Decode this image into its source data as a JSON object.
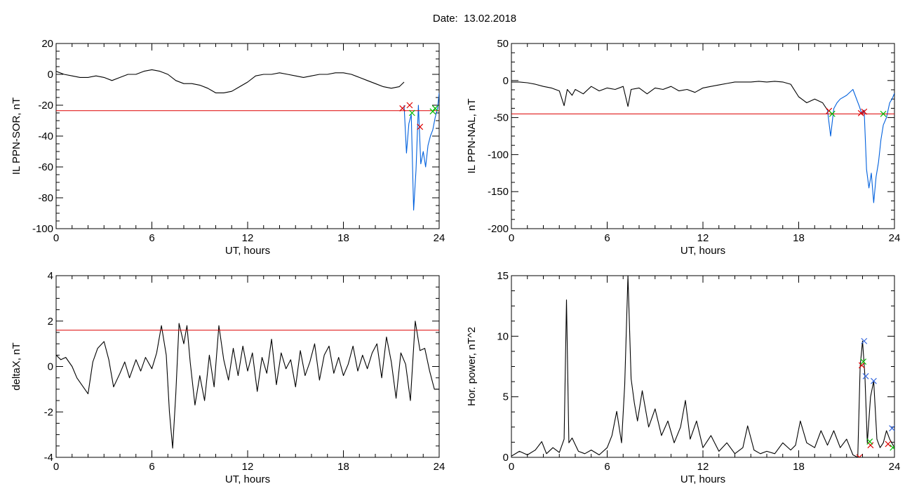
{
  "figure": {
    "date_label": "Date:",
    "date_value": "13.02.2018"
  },
  "colors": {
    "trace": "#000000",
    "substorm": "#0060dd",
    "threshold": "#dd0000",
    "marker_red": "#dd0000",
    "marker_green": "#00bb00",
    "marker_blue": "#3366dd"
  },
  "chart_data": [
    {
      "type": "line",
      "ylabel": "IL PPN-SOR, nT",
      "xlabel": "UT, hours",
      "xlim": [
        0,
        24
      ],
      "ylim": [
        -100,
        20
      ],
      "xticks": [
        "0",
        "6",
        "12",
        "18",
        "24"
      ],
      "yticks": [
        "20",
        "0",
        "-20",
        "-40",
        "-60",
        "-80",
        "-100"
      ],
      "threshold": -23.5,
      "series": [
        {
          "color_key": "trace",
          "x": [
            0,
            0.5,
            1,
            1.5,
            2,
            2.5,
            3,
            3.5,
            4,
            4.5,
            5,
            5.5,
            6,
            6.5,
            7,
            7.5,
            8,
            8.5,
            9,
            9.5,
            10,
            10.5,
            11,
            11.5,
            12,
            12.5,
            13,
            13.5,
            14,
            14.5,
            15,
            15.5,
            16,
            16.5,
            17,
            17.5,
            18,
            18.5,
            19,
            19.5,
            20,
            20.5,
            21,
            21.5,
            21.8
          ],
          "y": [
            2,
            0,
            -1,
            -2,
            -2,
            -1,
            -2,
            -4,
            -2,
            0,
            0,
            2,
            3,
            2,
            0,
            -4,
            -6,
            -6,
            -7,
            -9,
            -12,
            -12,
            -11,
            -8,
            -5,
            -1,
            0,
            0,
            1,
            0,
            -1,
            -2,
            -1,
            0,
            0,
            1,
            1,
            0,
            -2,
            -4,
            -6,
            -8,
            -9,
            -8,
            -5
          ]
        },
        {
          "color_key": "substorm",
          "x": [
            21.8,
            21.95,
            22.1,
            22.25,
            22.4,
            22.55,
            22.7,
            22.85,
            23.0,
            23.15,
            23.3,
            23.45,
            23.6,
            23.75,
            23.9,
            24
          ],
          "y": [
            -20,
            -51,
            -32,
            -26,
            -88,
            -62,
            -20,
            -58,
            -50,
            -60,
            -46,
            -40,
            -36,
            -28,
            -22,
            -12
          ]
        }
      ],
      "markers": [
        {
          "kind": "x",
          "color_key": "marker_red",
          "x": 21.7,
          "y": -22
        },
        {
          "kind": "x",
          "color_key": "marker_red",
          "x": 22.15,
          "y": -20
        },
        {
          "kind": "x",
          "color_key": "marker_red",
          "x": 22.8,
          "y": -34
        },
        {
          "kind": "x",
          "color_key": "marker_green",
          "x": 22.3,
          "y": -25
        },
        {
          "kind": "x",
          "color_key": "marker_green",
          "x": 23.6,
          "y": -24
        },
        {
          "kind": "x",
          "color_key": "marker_green",
          "x": 23.75,
          "y": -22
        }
      ]
    },
    {
      "type": "line",
      "ylabel": "IL PPN-NAL, nT",
      "xlabel": "UT, hours",
      "xlim": [
        0,
        24
      ],
      "ylim": [
        -200,
        50
      ],
      "xticks": [
        "0",
        "6",
        "12",
        "18",
        "24"
      ],
      "yticks": [
        "50",
        "0",
        "-50",
        "-100",
        "-150",
        "-200"
      ],
      "threshold": -45,
      "series": [
        {
          "color_key": "trace",
          "x": [
            0,
            0.5,
            1,
            1.5,
            2,
            2.5,
            3,
            3.3,
            3.5,
            3.8,
            4,
            4.5,
            5,
            5.5,
            6,
            6.5,
            7,
            7.3,
            7.5,
            8,
            8.5,
            9,
            9.5,
            10,
            10.5,
            11,
            11.5,
            12,
            12.5,
            13,
            13.5,
            14,
            14.5,
            15,
            15.5,
            16,
            16.5,
            17,
            17.5,
            18,
            18.5,
            19,
            19.5,
            19.8
          ],
          "y": [
            -2,
            -2,
            -3,
            -5,
            -8,
            -10,
            -14,
            -34,
            -12,
            -20,
            -12,
            -18,
            -8,
            -14,
            -10,
            -12,
            -8,
            -35,
            -12,
            -10,
            -18,
            -10,
            -12,
            -8,
            -14,
            -12,
            -16,
            -10,
            -8,
            -6,
            -4,
            -2,
            -2,
            -2,
            -1,
            -2,
            -1,
            -2,
            -5,
            -22,
            -30,
            -25,
            -30,
            -40
          ]
        },
        {
          "color_key": "substorm",
          "x": [
            19.8,
            20.0,
            20.2,
            20.4,
            20.6,
            21.0,
            21.4,
            21.8,
            21.95,
            22.1,
            22.25,
            22.4,
            22.55,
            22.7,
            22.85,
            23.0,
            23.15,
            23.3,
            23.5,
            23.7,
            23.85,
            24
          ],
          "y": [
            -40,
            -75,
            -38,
            -30,
            -25,
            -20,
            -12,
            -35,
            -45,
            -40,
            -120,
            -145,
            -125,
            -165,
            -130,
            -110,
            -80,
            -60,
            -50,
            -30,
            -25,
            -17
          ]
        }
      ],
      "markers": [
        {
          "kind": "x",
          "color_key": "marker_red",
          "x": 19.9,
          "y": -41
        },
        {
          "kind": "x",
          "color_key": "marker_red",
          "x": 21.9,
          "y": -44
        },
        {
          "kind": "x",
          "color_key": "marker_red",
          "x": 22.1,
          "y": -42
        },
        {
          "kind": "x",
          "color_key": "marker_green",
          "x": 20.1,
          "y": -45
        },
        {
          "kind": "x",
          "color_key": "marker_green",
          "x": 23.3,
          "y": -45
        }
      ]
    },
    {
      "type": "line",
      "ylabel": "deltaX, nT",
      "xlabel": "UT, hours",
      "xlim": [
        0,
        24
      ],
      "ylim": [
        -4,
        4
      ],
      "xticks": [
        "0",
        "6",
        "12",
        "18",
        "24"
      ],
      "yticks": [
        "4",
        "2",
        "0",
        "-2",
        "-4"
      ],
      "threshold": 1.6,
      "series": [
        {
          "color_key": "trace",
          "x": [
            0,
            0.3,
            0.6,
            1,
            1.3,
            1.6,
            2,
            2.3,
            2.6,
            3,
            3.3,
            3.6,
            4,
            4.3,
            4.6,
            5,
            5.3,
            5.6,
            6,
            6.3,
            6.6,
            6.9,
            7.1,
            7.3,
            7.5,
            7.7,
            8,
            8.2,
            8.4,
            8.7,
            9,
            9.3,
            9.6,
            9.9,
            10.2,
            10.5,
            10.8,
            11.1,
            11.4,
            11.7,
            12,
            12.3,
            12.6,
            12.9,
            13.2,
            13.5,
            13.8,
            14.1,
            14.4,
            14.7,
            15,
            15.3,
            15.6,
            15.9,
            16.2,
            16.5,
            16.8,
            17.1,
            17.4,
            17.7,
            18,
            18.3,
            18.6,
            18.9,
            19.2,
            19.5,
            19.8,
            20.1,
            20.4,
            20.7,
            21,
            21.3,
            21.6,
            21.9,
            22.2,
            22.5,
            22.8,
            23.1,
            23.4,
            23.7,
            24
          ],
          "y": [
            0.5,
            0.3,
            0.4,
            0.0,
            -0.5,
            -0.8,
            -1.2,
            0.2,
            0.8,
            1.1,
            0.3,
            -0.9,
            -0.3,
            0.2,
            -0.5,
            0.3,
            -0.2,
            0.4,
            -0.1,
            0.6,
            1.8,
            0.5,
            -2.0,
            -3.6,
            -1.2,
            1.9,
            1.0,
            1.8,
            0.2,
            -1.7,
            -0.4,
            -1.5,
            0.5,
            -0.9,
            1.8,
            0.3,
            -0.6,
            0.8,
            -0.4,
            0.9,
            -0.2,
            0.6,
            -1.1,
            0.4,
            -0.3,
            1.2,
            -0.8,
            0.6,
            -0.1,
            0.3,
            -0.9,
            0.7,
            -0.4,
            0.2,
            1.0,
            -0.6,
            0.5,
            0.9,
            -0.3,
            0.4,
            -0.4,
            0.1,
            0.9,
            -0.2,
            0.5,
            -0.1,
            0.6,
            1.0,
            -0.5,
            1.3,
            0.2,
            -1.4,
            0.6,
            0.1,
            -1.5,
            2.0,
            0.7,
            0.8,
            -0.2,
            -1.0,
            -1.0
          ]
        }
      ],
      "markers": []
    },
    {
      "type": "line",
      "ylabel": "Hor. power, nT^2",
      "xlabel": "UT, hours",
      "xlim": [
        0,
        24
      ],
      "ylim": [
        0,
        15
      ],
      "xticks": [
        "0",
        "6",
        "12",
        "18",
        "24"
      ],
      "yticks": [
        "15",
        "10",
        "5",
        "0"
      ],
      "threshold": null,
      "series": [
        {
          "color_key": "trace",
          "x": [
            0,
            0.5,
            1,
            1.5,
            1.9,
            2.2,
            2.6,
            3,
            3.3,
            3.45,
            3.6,
            3.8,
            4.2,
            4.6,
            5,
            5.5,
            6,
            6.3,
            6.6,
            6.9,
            7.1,
            7.3,
            7.5,
            7.7,
            7.9,
            8.2,
            8.6,
            9,
            9.4,
            9.8,
            10.2,
            10.6,
            10.9,
            11.2,
            11.6,
            12,
            12.5,
            13,
            13.5,
            14,
            14.5,
            14.8,
            15.2,
            15.6,
            16,
            16.5,
            17,
            17.5,
            17.8,
            18.1,
            18.5,
            19,
            19.4,
            19.8,
            20.2,
            20.6,
            21,
            21.4,
            21.7,
            21.85,
            22.0,
            22.15,
            22.3,
            22.5,
            22.7,
            22.9,
            23.1,
            23.3,
            23.5,
            23.7,
            24
          ],
          "y": [
            0.1,
            0.5,
            0.2,
            0.6,
            1.3,
            0.3,
            0.8,
            0.4,
            1.5,
            13.0,
            1.2,
            1.6,
            0.5,
            0.3,
            0.6,
            0.2,
            0.8,
            1.8,
            3.8,
            1.2,
            6.0,
            15.0,
            6.5,
            4.5,
            3.0,
            5.5,
            2.5,
            4.0,
            1.8,
            3.0,
            1.2,
            2.5,
            4.7,
            1.5,
            3.0,
            0.8,
            1.8,
            0.5,
            1.2,
            0.3,
            0.8,
            2.6,
            0.6,
            0.3,
            0.5,
            0.3,
            1.2,
            0.6,
            1.0,
            3.0,
            1.2,
            0.8,
            2.2,
            1.0,
            2.2,
            0.8,
            1.5,
            0.2,
            0.0,
            7.5,
            9.6,
            6.7,
            1.2,
            5.0,
            6.3,
            1.5,
            0.8,
            1.2,
            2.2,
            1.5,
            0.8
          ]
        }
      ],
      "markers": [
        {
          "kind": "x",
          "color_key": "marker_blue",
          "x": 22.1,
          "y": 9.6
        },
        {
          "kind": "x",
          "color_key": "marker_blue",
          "x": 22.2,
          "y": 6.7
        },
        {
          "kind": "x",
          "color_key": "marker_blue",
          "x": 22.7,
          "y": 6.3
        },
        {
          "kind": "x",
          "color_key": "marker_blue",
          "x": 23.85,
          "y": 2.4
        },
        {
          "kind": "x",
          "color_key": "marker_red",
          "x": 21.95,
          "y": 7.6
        },
        {
          "kind": "x",
          "color_key": "marker_red",
          "x": 22.5,
          "y": 1.0
        },
        {
          "kind": "x",
          "color_key": "marker_red",
          "x": 23.6,
          "y": 1.1
        },
        {
          "kind": "x",
          "color_key": "marker_red",
          "x": 21.8,
          "y": 0.0
        },
        {
          "kind": "x",
          "color_key": "marker_green",
          "x": 22.05,
          "y": 7.9
        },
        {
          "kind": "x",
          "color_key": "marker_green",
          "x": 22.45,
          "y": 1.3
        },
        {
          "kind": "x",
          "color_key": "marker_green",
          "x": 23.9,
          "y": 0.8
        }
      ]
    }
  ]
}
